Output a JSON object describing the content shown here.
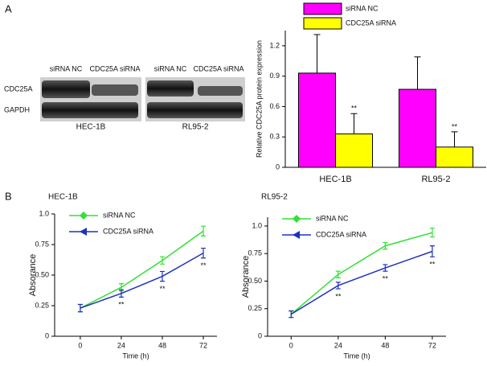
{
  "panel_labels": [
    "A",
    "B"
  ],
  "blot": {
    "rows": [
      "CDC25A",
      "GAPDH"
    ],
    "lanes": [
      [
        "siRNA NC",
        "CDC25A siRNA"
      ],
      [
        "siRNA NC",
        "CDC25A siRNA"
      ]
    ],
    "cell_lines": [
      "HEC-1B",
      "RL95-2"
    ]
  },
  "chart_data": [
    {
      "type": "bar",
      "y_label": "Relative CDC25A protein expression",
      "categories": [
        "HEC-1B",
        "RL95-2"
      ],
      "series": [
        {
          "name": "siRNA NC",
          "color": "#ff00ff",
          "values": [
            0.93,
            0.77
          ],
          "errors": [
            0.38,
            0.32
          ]
        },
        {
          "name": "CDC25A siRNA",
          "color": "#ffff00",
          "values": [
            0.33,
            0.2
          ],
          "errors": [
            0.2,
            0.15
          ],
          "annotations": [
            "**",
            "**"
          ]
        }
      ],
      "ylim": [
        0,
        1.35
      ],
      "yticks": [
        0,
        0.3,
        0.6,
        0.9,
        1.2
      ]
    },
    {
      "type": "line",
      "title": "HEC-1B",
      "x_label": "Time (h)",
      "y_label": "Absorance",
      "x": [
        0,
        24,
        48,
        72
      ],
      "series": [
        {
          "name": "siRNA NC",
          "color": "#33e033",
          "values": [
            0.23,
            0.4,
            0.62,
            0.86
          ],
          "errors": [
            0.03,
            0.03,
            0.03,
            0.04
          ]
        },
        {
          "name": "CDC25A siRNA",
          "color": "#2030c0",
          "values": [
            0.23,
            0.35,
            0.49,
            0.68
          ],
          "errors": [
            0.03,
            0.03,
            0.04,
            0.04
          ],
          "annotations": [
            null,
            "**",
            "**",
            "**"
          ]
        }
      ],
      "xlim": [
        -15,
        80
      ],
      "xticks": [
        0,
        24,
        48,
        72
      ],
      "ylim": [
        0,
        1.0
      ],
      "yticks": [
        0,
        0.25,
        {
          "value": 0.5,
          "label": "0.50"
        },
        0.75,
        {
          "value": 1,
          "label": "1.0"
        }
      ]
    },
    {
      "type": "line",
      "title": "RL95-2",
      "x_label": "Time (h)",
      "y_label": "Absorance",
      "x": [
        0,
        24,
        48,
        72
      ],
      "series": [
        {
          "name": "siRNA NC",
          "color": "#33e033",
          "values": [
            0.2,
            0.56,
            0.82,
            0.94
          ],
          "errors": [
            0.03,
            0.03,
            0.03,
            0.04
          ]
        },
        {
          "name": "CDC25A siRNA",
          "color": "#2030c0",
          "values": [
            0.2,
            0.46,
            0.62,
            0.77
          ],
          "errors": [
            0.03,
            0.03,
            0.03,
            0.05
          ],
          "annotations": [
            null,
            "**",
            "**",
            "**"
          ]
        }
      ],
      "xlim": [
        -12,
        79
      ],
      "xticks": [
        0,
        24,
        48,
        72
      ],
      "ylim": [
        0,
        1.08
      ],
      "yticks": [
        0,
        0.25,
        {
          "value": 0.5,
          "label": "0.50"
        },
        0.75,
        {
          "value": 1,
          "label": "1.0"
        }
      ]
    }
  ]
}
